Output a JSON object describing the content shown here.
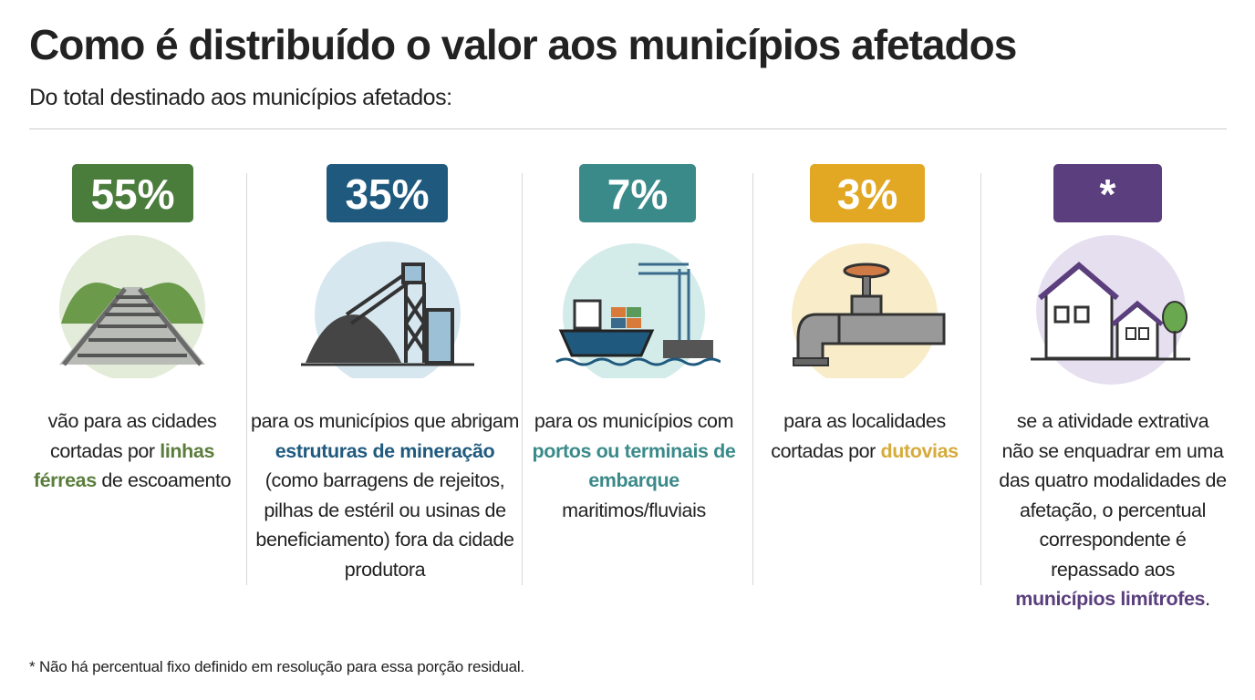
{
  "header": {
    "title": "Como é distribuído o valor aos municípios afetados",
    "subtitle": "Do total destinado aos municípios afetados:"
  },
  "columns": [
    {
      "badge": "55%",
      "text": [
        "vão para as cidades cortadas por",
        "linhas férreas",
        "de escoamento"
      ]
    },
    {
      "badge": "35%",
      "text": [
        "para os municípios que abrigam",
        "estruturas de mineração",
        "(como barragens de rejeitos, pilhas de estéril ou usinas de beneficiamento) fora da cidade produtora"
      ]
    },
    {
      "badge": "7%",
      "text": [
        "para os municípios com",
        "portos ou terminais de embarque",
        "maritimos/fluviais"
      ]
    },
    {
      "badge": "3%",
      "text": [
        "para as localidades cortadas por",
        "dutovias"
      ]
    },
    {
      "badge": "*",
      "text": [
        "se a atividade extrativa não se enquadrar em uma das quatro modalidades de afetação, o percentual correspondente é repassado aos",
        "municípios limítrofes",
        "."
      ]
    }
  ],
  "footnote": "* Não há percentual fixo definido em resolução para essa porção residual."
}
